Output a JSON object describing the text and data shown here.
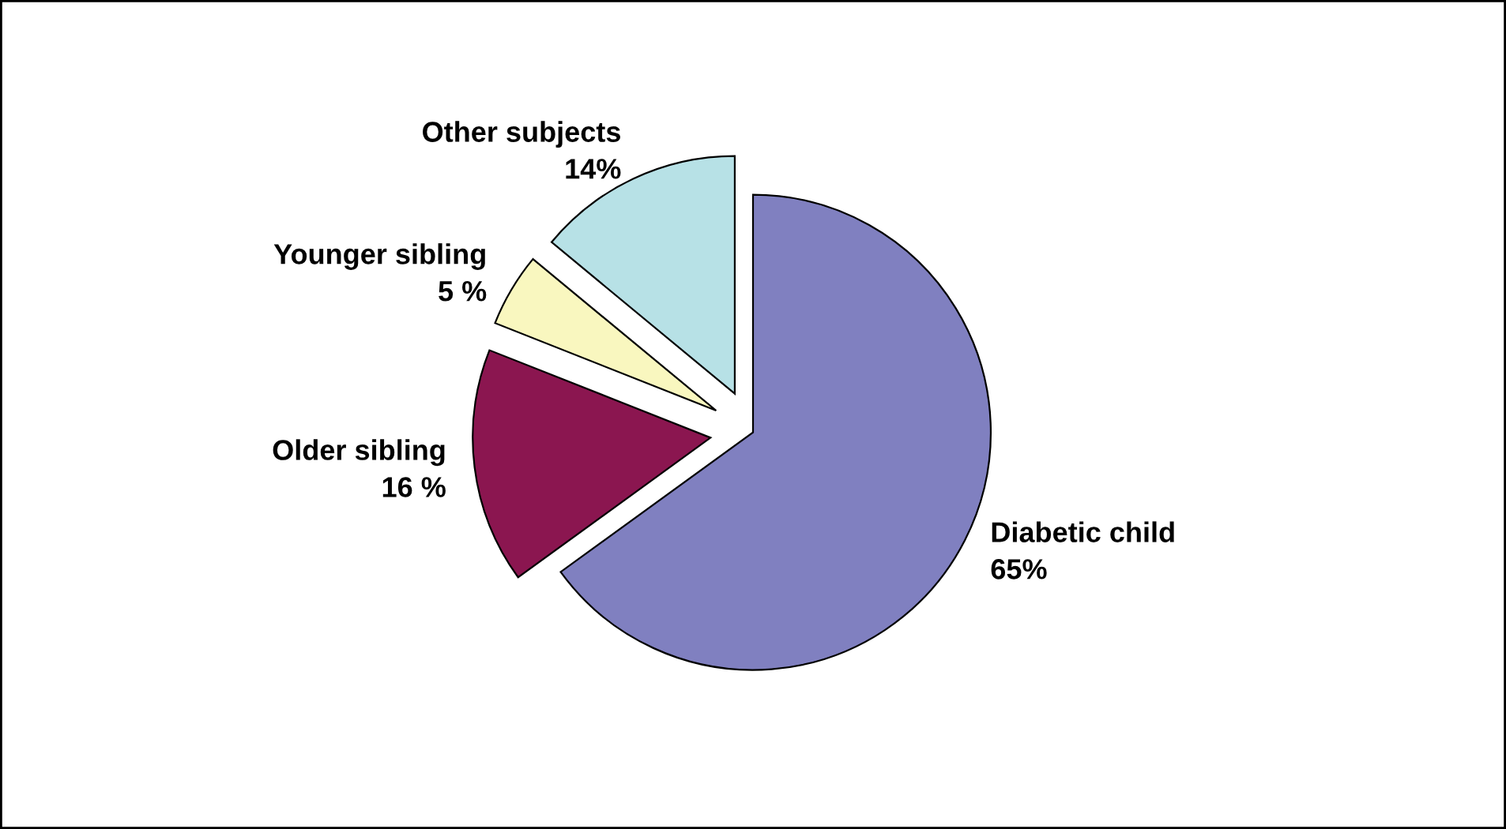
{
  "chart_data": {
    "type": "pie",
    "categories": [
      "Diabetic child",
      "Older sibling",
      "Younger sibling",
      "Other subjects"
    ],
    "values": [
      65,
      16,
      5,
      14
    ],
    "value_labels": [
      "65%",
      "16 %",
      "5 %",
      "14%"
    ],
    "colors": [
      "#8080c0",
      "#8b1650",
      "#f9f7bf",
      "#b7e1e6"
    ],
    "legend": false
  }
}
